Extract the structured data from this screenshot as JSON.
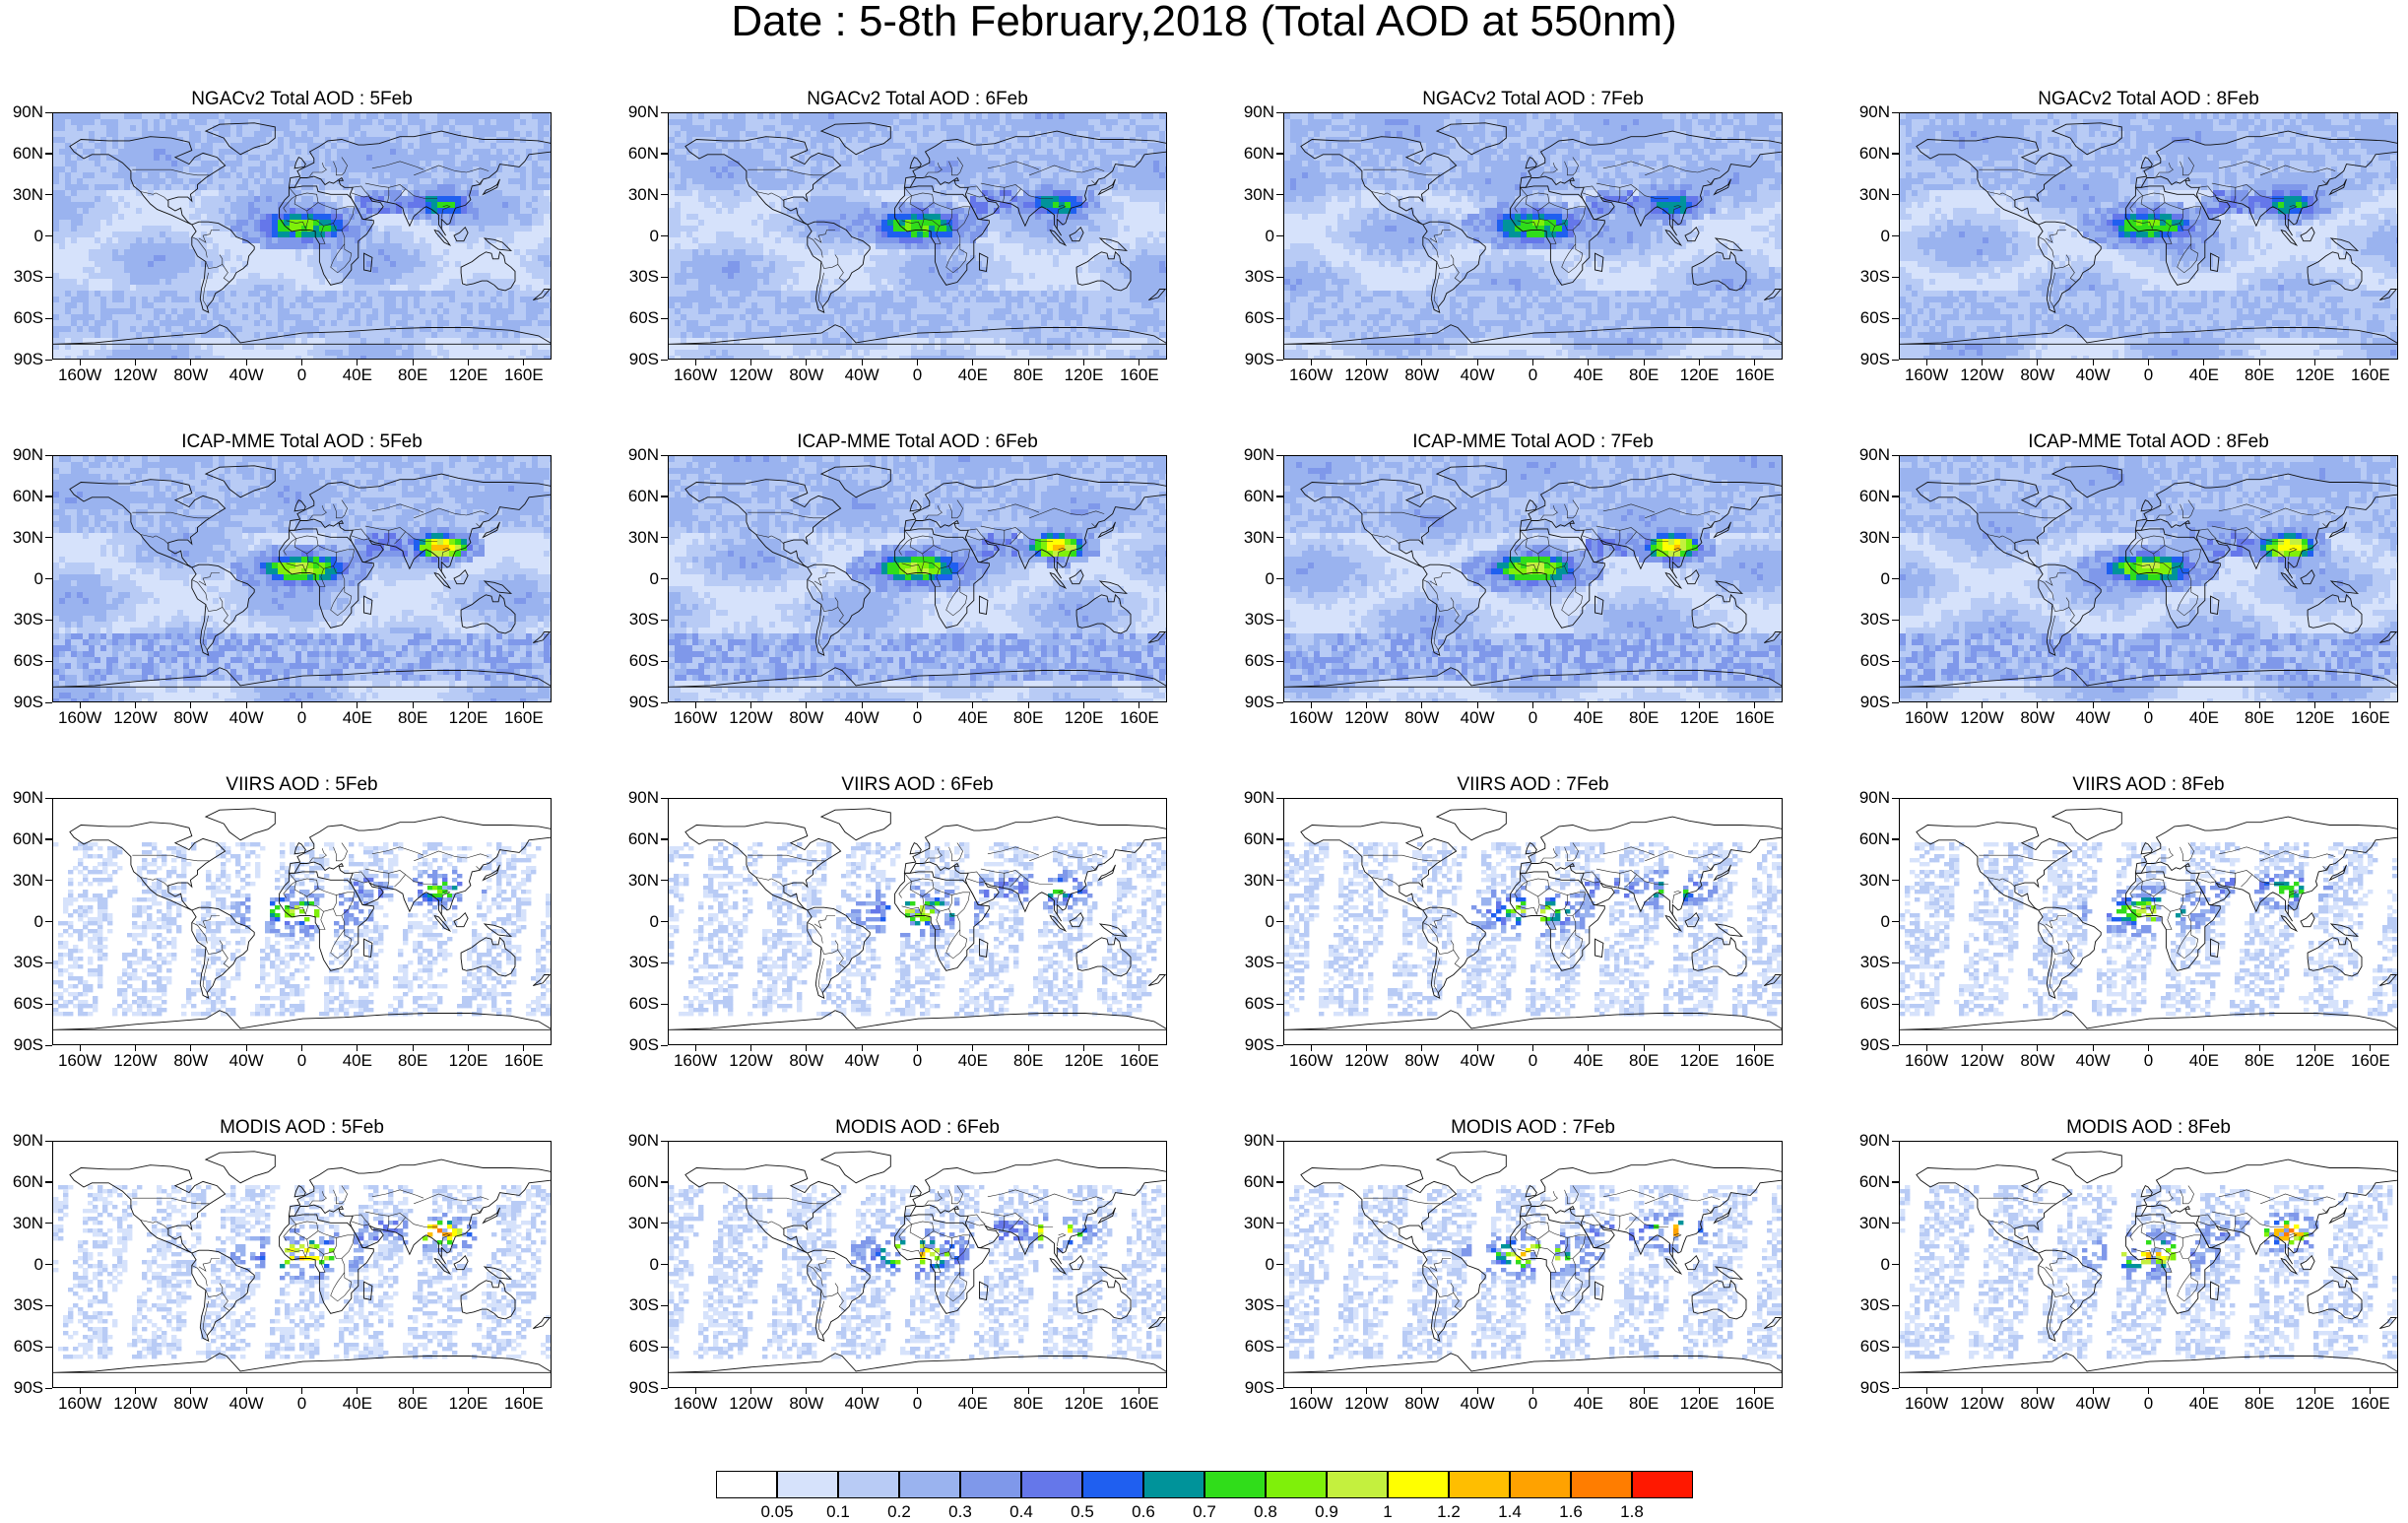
{
  "title": "Date : 5-8th February,2018 (Total AOD at 550nm)",
  "panels": [
    {
      "title": "NGACv2 Total AOD : 5Feb",
      "product": "NGACv2",
      "day": "5Feb"
    },
    {
      "title": "NGACv2 Total AOD : 6Feb",
      "product": "NGACv2",
      "day": "6Feb"
    },
    {
      "title": "NGACv2 Total AOD : 7Feb",
      "product": "NGACv2",
      "day": "7Feb"
    },
    {
      "title": "NGACv2 Total AOD : 8Feb",
      "product": "NGACv2",
      "day": "8Feb"
    },
    {
      "title": "ICAP-MME Total AOD : 5Feb",
      "product": "ICAP-MME",
      "day": "5Feb"
    },
    {
      "title": "ICAP-MME Total AOD : 6Feb",
      "product": "ICAP-MME",
      "day": "6Feb"
    },
    {
      "title": "ICAP-MME Total AOD : 7Feb",
      "product": "ICAP-MME",
      "day": "7Feb"
    },
    {
      "title": "ICAP-MME Total AOD : 8Feb",
      "product": "ICAP-MME",
      "day": "8Feb"
    },
    {
      "title": "VIIRS AOD : 5Feb",
      "product": "VIIRS",
      "day": "5Feb"
    },
    {
      "title": "VIIRS AOD : 6Feb",
      "product": "VIIRS",
      "day": "6Feb"
    },
    {
      "title": "VIIRS AOD : 7Feb",
      "product": "VIIRS",
      "day": "7Feb"
    },
    {
      "title": "VIIRS AOD : 8Feb",
      "product": "VIIRS",
      "day": "8Feb"
    },
    {
      "title": "MODIS AOD : 5Feb",
      "product": "MODIS",
      "day": "5Feb"
    },
    {
      "title": "MODIS AOD : 6Feb",
      "product": "MODIS",
      "day": "6Feb"
    },
    {
      "title": "MODIS AOD : 7Feb",
      "product": "MODIS",
      "day": "7Feb"
    },
    {
      "title": "MODIS AOD : 8Feb",
      "product": "MODIS",
      "day": "8Feb"
    }
  ],
  "lat_labels": [
    "90N",
    "60N",
    "30N",
    "0",
    "30S",
    "60S",
    "90S"
  ],
  "lon_labels": [
    "160W",
    "120W",
    "80W",
    "40W",
    "0",
    "40E",
    "80E",
    "120E",
    "160E"
  ],
  "colorbar": {
    "labels": [
      "0.05",
      "0.1",
      "0.2",
      "0.3",
      "0.4",
      "0.5",
      "0.6",
      "0.7",
      "0.8",
      "0.9",
      "1",
      "1.2",
      "1.4",
      "1.6",
      "1.8"
    ],
    "colors": [
      "#ffffff",
      "#d6e2fb",
      "#b8cbf5",
      "#9ab3ef",
      "#7f98ea",
      "#6577ea",
      "#1f5ff0",
      "#00939a",
      "#30dd1a",
      "#7ff00a",
      "#c4f03e",
      "#ffff00",
      "#ffbe00",
      "#ffa200",
      "#ff7d00",
      "#ff1800"
    ]
  },
  "fields": {
    "NGACv2": {
      "ocean": [
        1,
        2
      ],
      "dust": [
        6,
        9
      ],
      "asia": [
        5,
        8
      ],
      "south": [
        2,
        3
      ]
    },
    "ICAP-MME": {
      "ocean": [
        1,
        3
      ],
      "dust": [
        8,
        10
      ],
      "asia": [
        6,
        12
      ],
      "south": [
        2,
        4
      ]
    },
    "VIIRS": {
      "ocean": [
        0,
        2
      ],
      "dust": [
        6,
        10
      ],
      "asia": [
        5,
        9
      ],
      "south": [
        0,
        1
      ]
    },
    "MODIS": {
      "ocean": [
        0,
        2
      ],
      "dust": [
        7,
        12
      ],
      "asia": [
        6,
        14
      ],
      "south": [
        0,
        2
      ]
    }
  }
}
